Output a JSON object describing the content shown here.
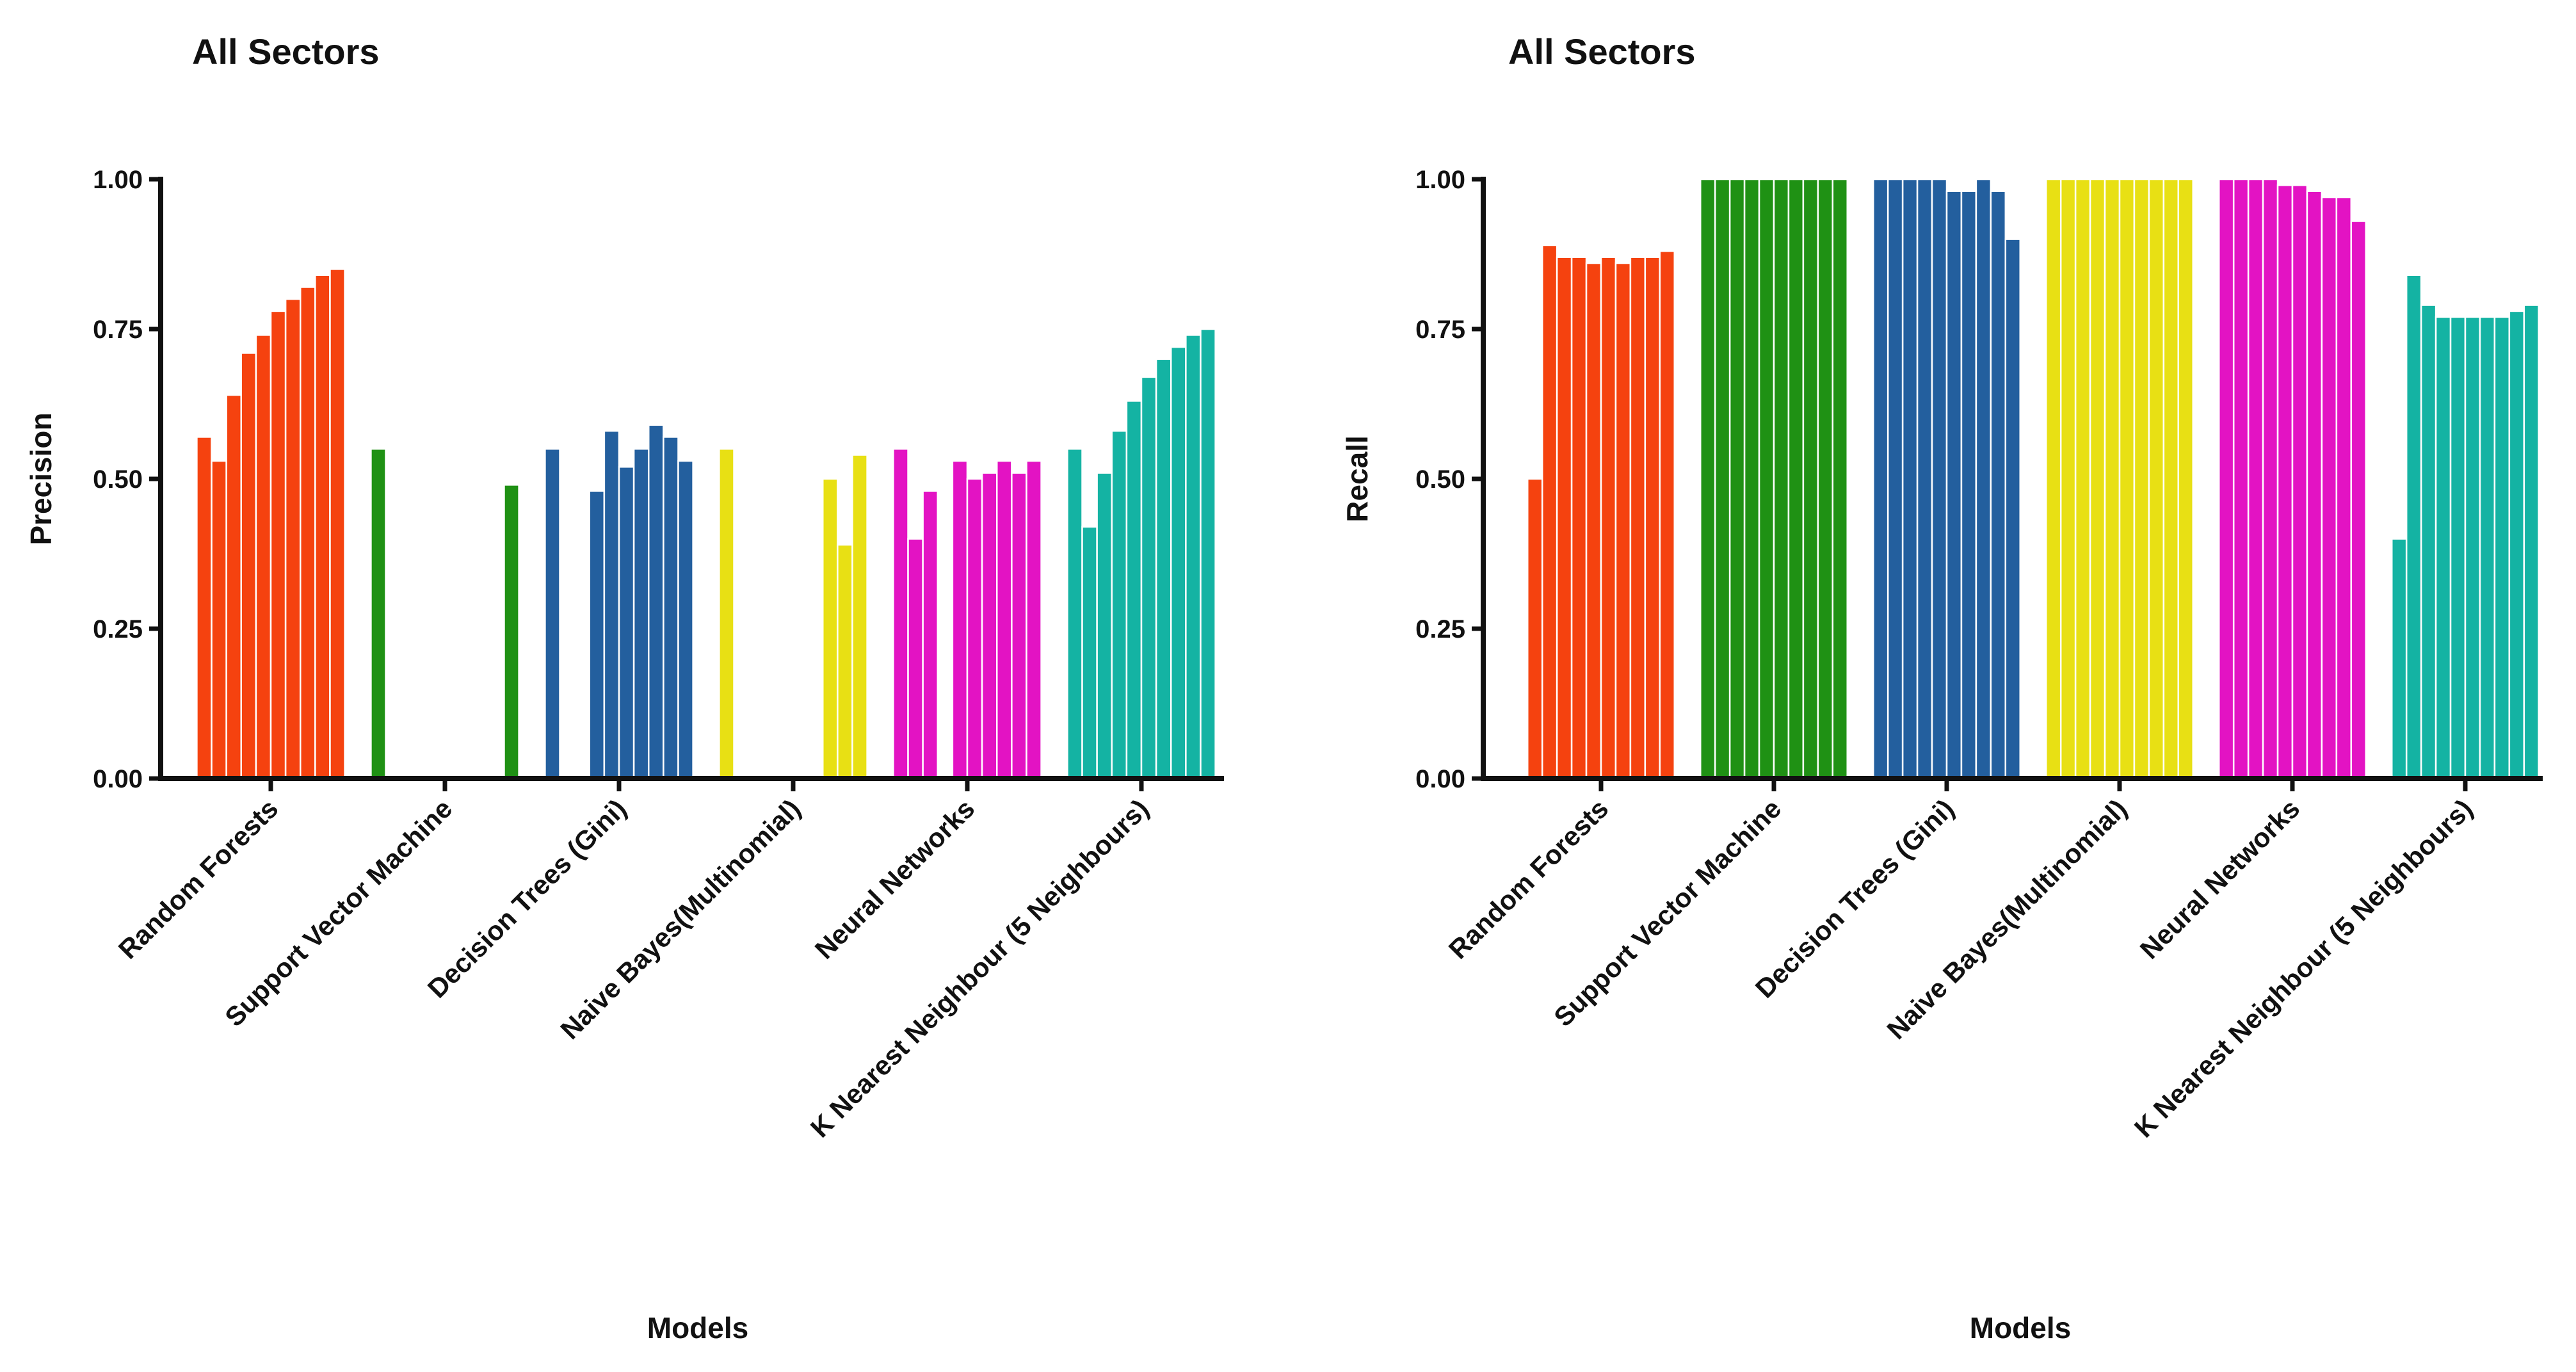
{
  "chart_data": [
    {
      "type": "bar",
      "title": "All Sectors",
      "ylabel": "Precision",
      "xlabel": "Models",
      "categories": [
        "Random Forests",
        "Support Vector Machine",
        "Decision Trees (Gini)",
        "Naive Bayes(Multinomial)",
        "Neural Networks",
        "K Nearest Neighbour (5 Neighbours)"
      ],
      "colors": [
        "#f5420f",
        "#1f9114",
        "#235f9e",
        "#e8e014",
        "#e313c3",
        "#14b3a3"
      ],
      "values": [
        [
          0.57,
          0.53,
          0.64,
          0.71,
          0.74,
          0.78,
          0.8,
          0.82,
          0.84,
          0.85
        ],
        [
          0.55,
          0,
          0,
          0,
          0,
          0,
          0,
          0,
          0,
          0.49
        ],
        [
          0.55,
          0,
          0,
          0.48,
          0.58,
          0.52,
          0.55,
          0.59,
          0.57,
          0.53
        ],
        [
          0.55,
          0,
          0,
          0,
          0,
          0,
          0,
          0.5,
          0.39,
          0.54
        ],
        [
          0.55,
          0.4,
          0.48,
          0,
          0.53,
          0.5,
          0.51,
          0.53,
          0.51,
          0.53
        ],
        [
          0.55,
          0.42,
          0.51,
          0.58,
          0.63,
          0.67,
          0.7,
          0.72,
          0.74,
          0.75
        ]
      ],
      "ylim": [
        0,
        1
      ],
      "yticks": [
        {
          "value": 0,
          "label": "0.00"
        },
        {
          "value": 0.25,
          "label": "0.25"
        },
        {
          "value": 0.5,
          "label": "0.50"
        },
        {
          "value": 0.75,
          "label": "0.75"
        },
        {
          "value": 1,
          "label": "1.00"
        }
      ]
    },
    {
      "type": "bar",
      "title": "All Sectors",
      "ylabel": "Recall",
      "xlabel": "Models",
      "categories": [
        "Random Forests",
        "Support Vector Machine",
        "Decision Trees (Gini)",
        "Naive Bayes(Multinomial)",
        "Neural Networks",
        "K Nearest Neighbour (5 Neighbours)"
      ],
      "colors": [
        "#f5420f",
        "#1f9114",
        "#235f9e",
        "#e8e014",
        "#e313c3",
        "#14b3a3"
      ],
      "values": [
        [
          0.5,
          0.89,
          0.87,
          0.87,
          0.86,
          0.87,
          0.86,
          0.87,
          0.87,
          0.88
        ],
        [
          1,
          1,
          1,
          1,
          1,
          1,
          1,
          1,
          1,
          1
        ],
        [
          1,
          1,
          1,
          1,
          1,
          0.98,
          0.98,
          1,
          0.98,
          0.9
        ],
        [
          1,
          1,
          1,
          1,
          1,
          1,
          1,
          1,
          1,
          1
        ],
        [
          1,
          1,
          1,
          1,
          0.99,
          0.99,
          0.98,
          0.97,
          0.97,
          0.93
        ],
        [
          0.4,
          0.84,
          0.79,
          0.77,
          0.77,
          0.77,
          0.77,
          0.77,
          0.78,
          0.79
        ]
      ],
      "ylim": [
        0,
        1
      ],
      "yticks": [
        {
          "value": 0,
          "label": "0.00"
        },
        {
          "value": 0.25,
          "label": "0.25"
        },
        {
          "value": 0.5,
          "label": "0.50"
        },
        {
          "value": 0.75,
          "label": "0.75"
        },
        {
          "value": 1,
          "label": "1.00"
        }
      ]
    }
  ]
}
